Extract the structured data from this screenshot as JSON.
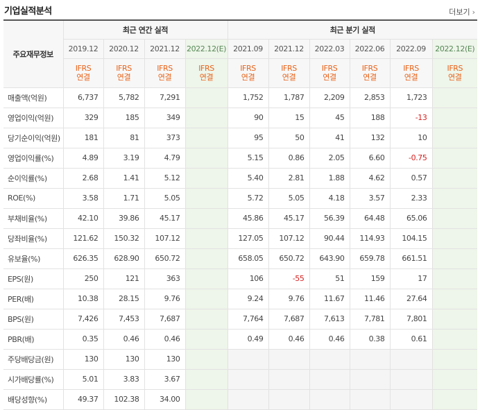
{
  "header": {
    "title": "기업실적분석",
    "more_label": "더보기"
  },
  "table": {
    "corner_label": "주요재무정보",
    "annual_group": "최근 연간 실적",
    "quarter_group": "최근 분기 실적",
    "annual_periods": [
      "2019.12",
      "2020.12",
      "2021.12",
      "2022.12(E)"
    ],
    "quarter_periods": [
      "2021.09",
      "2021.12",
      "2022.03",
      "2022.06",
      "2022.09",
      "2022.12(E)"
    ],
    "ifrs_top": "IFRS",
    "ifrs_bottom": "연결",
    "rows": [
      {
        "label": "매출액(억원)",
        "annual": [
          "6,737",
          "5,782",
          "7,291",
          ""
        ],
        "quarter": [
          "1,752",
          "1,787",
          "2,209",
          "2,853",
          "1,723",
          ""
        ]
      },
      {
        "label": "영업이익(억원)",
        "annual": [
          "329",
          "185",
          "349",
          ""
        ],
        "quarter": [
          "90",
          "15",
          "45",
          "188",
          "-13",
          ""
        ]
      },
      {
        "label": "당기순이익(억원)",
        "annual": [
          "181",
          "81",
          "373",
          ""
        ],
        "quarter": [
          "95",
          "50",
          "41",
          "132",
          "10",
          ""
        ]
      },
      {
        "label": "영업이익률(%)",
        "annual": [
          "4.89",
          "3.19",
          "4.79",
          ""
        ],
        "quarter": [
          "5.15",
          "0.86",
          "2.05",
          "6.60",
          "-0.75",
          ""
        ]
      },
      {
        "label": "순이익률(%)",
        "annual": [
          "2.68",
          "1.41",
          "5.12",
          ""
        ],
        "quarter": [
          "5.40",
          "2.81",
          "1.88",
          "4.62",
          "0.57",
          ""
        ]
      },
      {
        "label": "ROE(%)",
        "annual": [
          "3.58",
          "1.71",
          "5.05",
          ""
        ],
        "quarter": [
          "5.72",
          "5.05",
          "4.18",
          "3.57",
          "2.33",
          ""
        ]
      },
      {
        "label": "부채비율(%)",
        "annual": [
          "42.10",
          "39.86",
          "45.17",
          ""
        ],
        "quarter": [
          "45.86",
          "45.17",
          "56.39",
          "64.48",
          "65.06",
          ""
        ]
      },
      {
        "label": "당좌비율(%)",
        "annual": [
          "121.62",
          "150.32",
          "107.12",
          ""
        ],
        "quarter": [
          "127.05",
          "107.12",
          "90.44",
          "114.93",
          "104.15",
          ""
        ]
      },
      {
        "label": "유보율(%)",
        "annual": [
          "626.35",
          "628.90",
          "650.72",
          ""
        ],
        "quarter": [
          "658.05",
          "650.72",
          "643.90",
          "659.78",
          "661.51",
          ""
        ]
      },
      {
        "label": "EPS(원)",
        "annual": [
          "250",
          "121",
          "363",
          ""
        ],
        "quarter": [
          "106",
          "-55",
          "51",
          "159",
          "17",
          ""
        ]
      },
      {
        "label": "PER(배)",
        "annual": [
          "10.38",
          "28.15",
          "9.76",
          ""
        ],
        "quarter": [
          "9.24",
          "9.76",
          "11.67",
          "11.46",
          "27.64",
          ""
        ]
      },
      {
        "label": "BPS(원)",
        "annual": [
          "7,426",
          "7,453",
          "7,687",
          ""
        ],
        "quarter": [
          "7,764",
          "7,687",
          "7,613",
          "7,781",
          "7,801",
          ""
        ]
      },
      {
        "label": "PBR(배)",
        "annual": [
          "0.35",
          "0.46",
          "0.46",
          ""
        ],
        "quarter": [
          "0.49",
          "0.46",
          "0.46",
          "0.38",
          "0.61",
          ""
        ]
      },
      {
        "label": "주당배당금(원)",
        "annual": [
          "130",
          "130",
          "130",
          ""
        ],
        "quarter": [
          "",
          "",
          "",
          "",
          "",
          ""
        ]
      },
      {
        "label": "시가배당률(%)",
        "annual": [
          "5.01",
          "3.83",
          "3.67",
          ""
        ],
        "quarter": [
          "",
          "",
          "",
          "",
          "",
          ""
        ]
      },
      {
        "label": "배당성향(%)",
        "annual": [
          "49.37",
          "102.38",
          "34.00",
          ""
        ],
        "quarter": [
          "",
          "",
          "",
          "",
          "",
          ""
        ]
      }
    ],
    "group_starts": [
      0,
      3,
      6,
      9,
      13
    ],
    "empty_quarter_rows": [
      13,
      14,
      15
    ]
  },
  "colors": {
    "ifrs_orange": "#e8641b",
    "negative_red": "#d61f1f",
    "estimate_green": "#eef5ea"
  }
}
